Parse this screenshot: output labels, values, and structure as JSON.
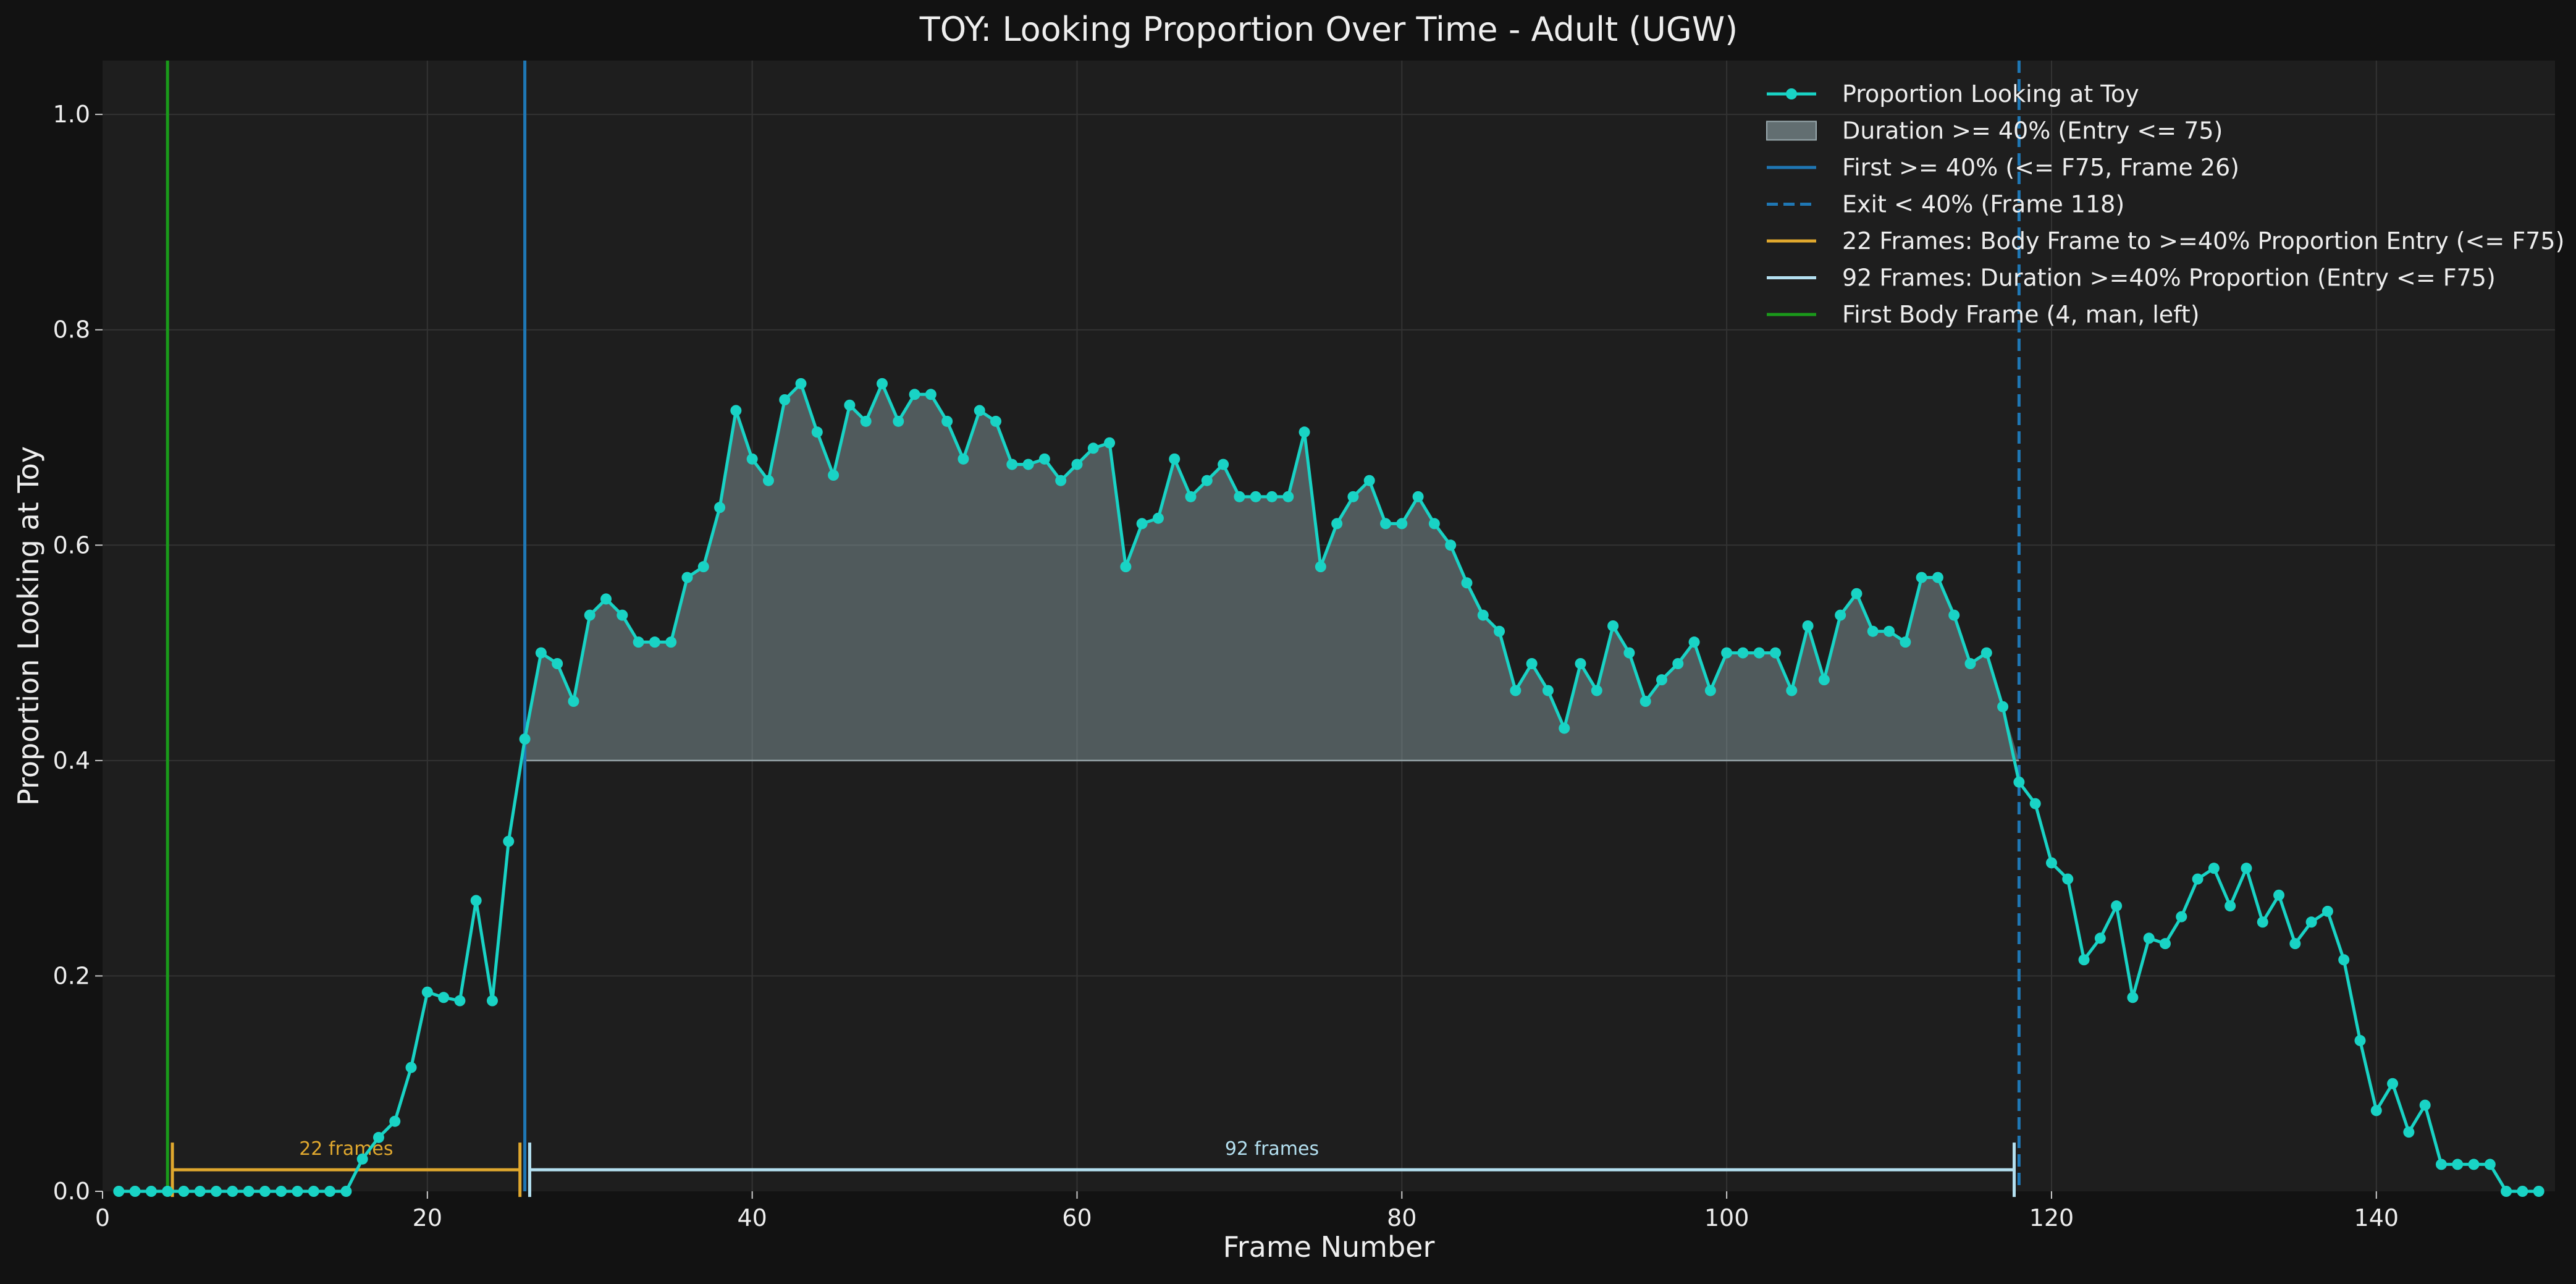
{
  "chart_data": {
    "type": "line",
    "title": "TOY: Looking Proportion Over Time - Adult (UGW)",
    "xlabel": "Frame Number",
    "ylabel": "Proportion Looking at Toy",
    "xlim": [
      0,
      151
    ],
    "ylim": [
      0,
      1.05
    ],
    "x_ticks": [
      0,
      20,
      40,
      60,
      80,
      100,
      120,
      140
    ],
    "y_ticks": [
      0.0,
      0.2,
      0.4,
      0.6,
      0.8,
      1.0
    ],
    "x_tick_labels": [
      "0",
      "20",
      "40",
      "60",
      "80",
      "100",
      "120",
      "140"
    ],
    "y_tick_labels": [
      "0.0",
      "0.2",
      "0.4",
      "0.6",
      "0.8",
      "1.0"
    ],
    "grid": true,
    "legend_position": "top-right",
    "threshold": 0.4,
    "colors": {
      "background": "#121212",
      "plot_background": "#1e1e1e",
      "grid": "#333333",
      "text": "#eeeeee",
      "series": "#19d3c5",
      "fill": "#8fa3a8",
      "entry_line": "#1f77b4",
      "exit_line": "#1f77b4",
      "body_to_entry": "#e0a82e",
      "duration": "#b4e0f0",
      "first_body": "#1a9a1a"
    },
    "series": [
      {
        "name": "Proportion Looking at Toy",
        "x": [
          1,
          2,
          3,
          4,
          5,
          6,
          7,
          8,
          9,
          10,
          11,
          12,
          13,
          14,
          15,
          16,
          17,
          18,
          19,
          20,
          21,
          22,
          23,
          24,
          25,
          26,
          27,
          28,
          29,
          30,
          31,
          32,
          33,
          34,
          35,
          36,
          37,
          38,
          39,
          40,
          41,
          42,
          43,
          44,
          45,
          46,
          47,
          48,
          49,
          50,
          51,
          52,
          53,
          54,
          55,
          56,
          57,
          58,
          59,
          60,
          61,
          62,
          63,
          64,
          65,
          66,
          67,
          68,
          69,
          70,
          71,
          72,
          73,
          74,
          75,
          76,
          77,
          78,
          79,
          80,
          81,
          82,
          83,
          84,
          85,
          86,
          87,
          88,
          89,
          90,
          91,
          92,
          93,
          94,
          95,
          96,
          97,
          98,
          99,
          100,
          101,
          102,
          103,
          104,
          105,
          106,
          107,
          108,
          109,
          110,
          111,
          112,
          113,
          114,
          115,
          116,
          117,
          118,
          119,
          120,
          121,
          122,
          123,
          124,
          125,
          126,
          127,
          128,
          129,
          130,
          131,
          132,
          133,
          134,
          135,
          136,
          137,
          138,
          139,
          140,
          141,
          142,
          143,
          144,
          145,
          146,
          147,
          148,
          149,
          150
        ],
        "y": [
          0,
          0,
          0,
          0,
          0,
          0,
          0,
          0,
          0,
          0,
          0,
          0,
          0,
          0,
          0,
          0.03,
          0.05,
          0.065,
          0.115,
          0.185,
          0.18,
          0.177,
          0.27,
          0.177,
          0.325,
          0.42,
          0.5,
          0.49,
          0.455,
          0.535,
          0.55,
          0.535,
          0.51,
          0.51,
          0.51,
          0.57,
          0.58,
          0.635,
          0.725,
          0.68,
          0.66,
          0.735,
          0.75,
          0.705,
          0.665,
          0.73,
          0.715,
          0.75,
          0.715,
          0.74,
          0.74,
          0.715,
          0.68,
          0.725,
          0.715,
          0.675,
          0.675,
          0.68,
          0.66,
          0.675,
          0.69,
          0.695,
          0.58,
          0.62,
          0.625,
          0.68,
          0.645,
          0.66,
          0.675,
          0.645,
          0.645,
          0.645,
          0.645,
          0.705,
          0.58,
          0.62,
          0.645,
          0.66,
          0.62,
          0.62,
          0.645,
          0.62,
          0.6,
          0.565,
          0.535,
          0.52,
          0.465,
          0.49,
          0.465,
          0.43,
          0.49,
          0.465,
          0.525,
          0.5,
          0.455,
          0.475,
          0.49,
          0.51,
          0.465,
          0.5,
          0.5,
          0.5,
          0.5,
          0.465,
          0.525,
          0.475,
          0.535,
          0.555,
          0.52,
          0.52,
          0.51,
          0.57,
          0.57,
          0.535,
          0.49,
          0.5,
          0.45,
          0.38,
          0.36,
          0.305,
          0.29,
          0.215,
          0.235,
          0.265,
          0.18,
          0.235,
          0.23,
          0.255,
          0.29,
          0.3,
          0.265,
          0.3,
          0.25,
          0.275,
          0.23,
          0.25,
          0.26,
          0.215,
          0.14,
          0.075,
          0.1,
          0.055,
          0.08,
          0.025,
          0.025,
          0.025,
          0.025,
          0,
          0,
          0
        ]
      }
    ],
    "fill_region": {
      "x_start": 26,
      "x_end": 118,
      "baseline": 0.4
    },
    "vertical_lines": [
      {
        "x": 4,
        "style": "solid",
        "role": "first_body"
      },
      {
        "x": 26,
        "style": "solid",
        "role": "entry_line"
      },
      {
        "x": 118,
        "style": "dashed",
        "role": "exit_line"
      }
    ],
    "legend": [
      {
        "label": "Proportion Looking at Toy",
        "kind": "line-marker",
        "role": "series"
      },
      {
        "label": "Duration >= 40% (Entry <= 75)",
        "kind": "patch",
        "role": "fill"
      },
      {
        "label": "First >= 40% (<= F75, Frame 26)",
        "kind": "line",
        "role": "entry_line"
      },
      {
        "label": "Exit < 40% (Frame 118)",
        "kind": "dashed",
        "role": "exit_line"
      },
      {
        "label": "22 Frames: Body Frame to >=40% Proportion Entry (<= F75)",
        "kind": "line",
        "role": "body_to_entry"
      },
      {
        "label": "92 Frames: Duration >=40% Proportion (Entry <= F75)",
        "kind": "line",
        "role": "duration"
      },
      {
        "label": "First Body Frame (4, man, left)",
        "kind": "line",
        "role": "first_body"
      }
    ],
    "annotations": [
      {
        "label": "22 frames",
        "x_start": 4.3,
        "x_end": 25.7,
        "y": 0.02,
        "role": "body_to_entry"
      },
      {
        "label": "92 frames",
        "x_start": 26.3,
        "x_end": 117.7,
        "y": 0.02,
        "role": "duration"
      }
    ]
  }
}
